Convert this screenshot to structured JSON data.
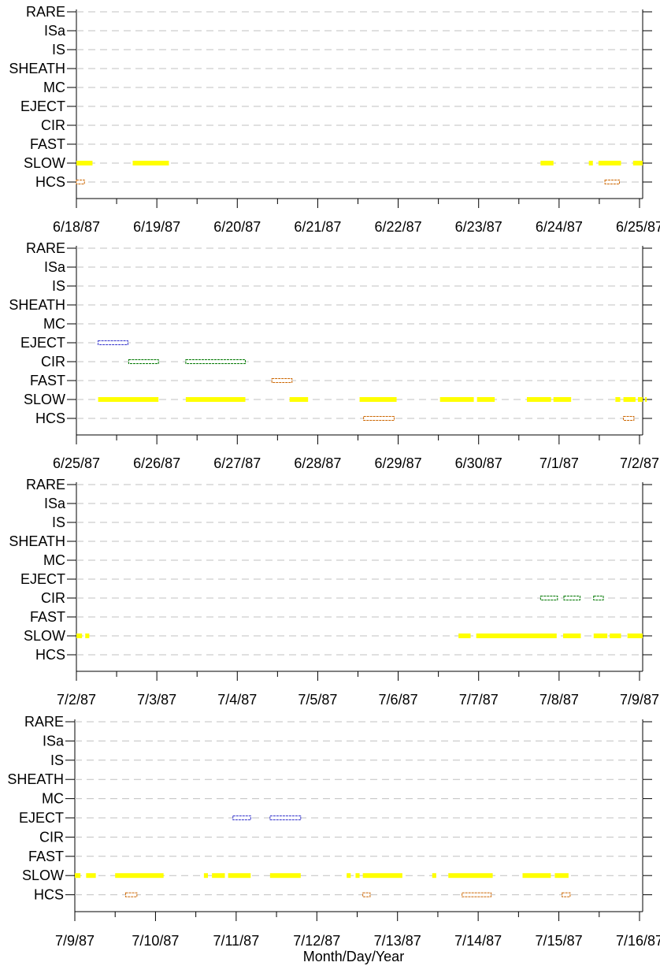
{
  "chart_data": [
    {
      "type": "timeline",
      "categories": [
        "RARE",
        "ISa",
        "IS",
        "SHEATH",
        "MC",
        "EJECT",
        "CIR",
        "FAST",
        "SLOW",
        "HCS"
      ],
      "xlim": [
        "6/18/87",
        "6/25/87"
      ],
      "x_tick_labels": [
        "6/18/87",
        "6/19/87",
        "6/20/87",
        "6/21/87",
        "6/22/87",
        "6/23/87",
        "6/24/87",
        "6/25/87"
      ],
      "series": [
        {
          "category": "SLOW",
          "color": "#ffff00",
          "style": "solid",
          "intervals": [
            [
              0.0,
              0.2
            ],
            [
              0.7,
              1.15
            ],
            [
              5.77,
              5.93
            ],
            [
              6.37,
              6.42
            ],
            [
              6.49,
              6.77
            ],
            [
              6.92,
              7.05
            ]
          ]
        },
        {
          "category": "HCS",
          "color": "#cc6600",
          "style": "hollow",
          "intervals": [
            [
              0.0,
              0.1
            ],
            [
              6.57,
              6.75
            ]
          ]
        }
      ]
    },
    {
      "type": "timeline",
      "categories": [
        "RARE",
        "ISa",
        "IS",
        "SHEATH",
        "MC",
        "EJECT",
        "CIR",
        "FAST",
        "SLOW",
        "HCS"
      ],
      "xlim": [
        "6/25/87",
        "7/2/87"
      ],
      "x_tick_labels": [
        "6/25/87",
        "6/26/87",
        "6/27/87",
        "6/28/87",
        "6/29/87",
        "6/30/87",
        "7/1/87",
        "7/2/87"
      ],
      "series": [
        {
          "category": "EJECT",
          "color": "#3333cc",
          "style": "hollow",
          "intervals": [
            [
              0.27,
              0.64
            ]
          ]
        },
        {
          "category": "CIR",
          "color": "#007700",
          "style": "hollow",
          "intervals": [
            [
              0.65,
              1.02
            ],
            [
              1.36,
              2.1
            ]
          ]
        },
        {
          "category": "FAST",
          "color": "#cc6600",
          "style": "hollow",
          "intervals": [
            [
              2.43,
              2.68
            ]
          ]
        },
        {
          "category": "SLOW",
          "color": "#ffff00",
          "style": "solid",
          "intervals": [
            [
              0.27,
              1.02
            ],
            [
              1.36,
              2.1
            ],
            [
              2.65,
              2.88
            ],
            [
              3.52,
              3.98
            ],
            [
              4.52,
              4.94
            ],
            [
              4.98,
              5.2
            ],
            [
              5.6,
              5.9
            ],
            [
              5.93,
              6.15
            ],
            [
              6.7,
              6.76
            ],
            [
              6.8,
              6.95
            ],
            [
              6.98,
              7.06
            ],
            [
              7.07,
              7.15
            ]
          ]
        },
        {
          "category": "HCS",
          "color": "#cc6600",
          "style": "hollow",
          "intervals": [
            [
              3.57,
              3.95
            ],
            [
              6.8,
              6.93
            ]
          ]
        }
      ]
    },
    {
      "type": "timeline",
      "categories": [
        "RARE",
        "ISa",
        "IS",
        "SHEATH",
        "MC",
        "EJECT",
        "CIR",
        "FAST",
        "SLOW",
        "HCS"
      ],
      "xlim": [
        "7/2/87",
        "7/9/87"
      ],
      "x_tick_labels": [
        "7/2/87",
        "7/3/87",
        "7/4/87",
        "7/5/87",
        "7/6/87",
        "7/7/87",
        "7/8/87",
        "7/9/87"
      ],
      "series": [
        {
          "category": "CIR",
          "color": "#007700",
          "style": "hollow",
          "intervals": [
            [
              5.77,
              5.98
            ],
            [
              6.06,
              6.26
            ],
            [
              6.43,
              6.55
            ]
          ]
        },
        {
          "category": "SLOW",
          "color": "#ffff00",
          "style": "solid",
          "intervals": [
            [
              0.0,
              0.07
            ],
            [
              0.11,
              0.16
            ],
            [
              4.75,
              4.9
            ],
            [
              4.97,
              5.97
            ],
            [
              6.05,
              6.27
            ],
            [
              6.43,
              6.6
            ],
            [
              6.63,
              6.77
            ],
            [
              6.85,
              7.06
            ]
          ]
        }
      ]
    },
    {
      "type": "timeline",
      "categories": [
        "RARE",
        "ISa",
        "IS",
        "SHEATH",
        "MC",
        "EJECT",
        "CIR",
        "FAST",
        "SLOW",
        "HCS"
      ],
      "xlim": [
        "7/9/87",
        "7/16/87"
      ],
      "x_tick_labels": [
        "7/9/87",
        "7/10/87",
        "7/11/87",
        "7/12/87",
        "7/13/87",
        "7/14/87",
        "7/15/87",
        "7/16/87"
      ],
      "xlabel": "Month/Day/Year",
      "series": [
        {
          "category": "EJECT",
          "color": "#3333cc",
          "style": "hollow",
          "intervals": [
            [
              1.96,
              2.18
            ],
            [
              2.42,
              2.8
            ]
          ]
        },
        {
          "category": "SLOW",
          "color": "#ffff00",
          "style": "solid",
          "intervals": [
            [
              0.0,
              0.07
            ],
            [
              0.14,
              0.26
            ],
            [
              0.5,
              1.1
            ],
            [
              1.6,
              1.65
            ],
            [
              1.7,
              1.86
            ],
            [
              1.9,
              2.18
            ],
            [
              2.42,
              2.8
            ],
            [
              3.37,
              3.42
            ],
            [
              3.48,
              3.53
            ],
            [
              3.57,
              4.06
            ],
            [
              4.43,
              4.48
            ],
            [
              4.63,
              5.18
            ],
            [
              5.55,
              5.9
            ],
            [
              5.95,
              6.12
            ]
          ]
        },
        {
          "category": "HCS",
          "color": "#cc6600",
          "style": "hollow",
          "intervals": [
            [
              0.63,
              0.77
            ],
            [
              3.57,
              3.66
            ],
            [
              4.8,
              5.16
            ],
            [
              6.04,
              6.14
            ]
          ]
        }
      ]
    }
  ]
}
